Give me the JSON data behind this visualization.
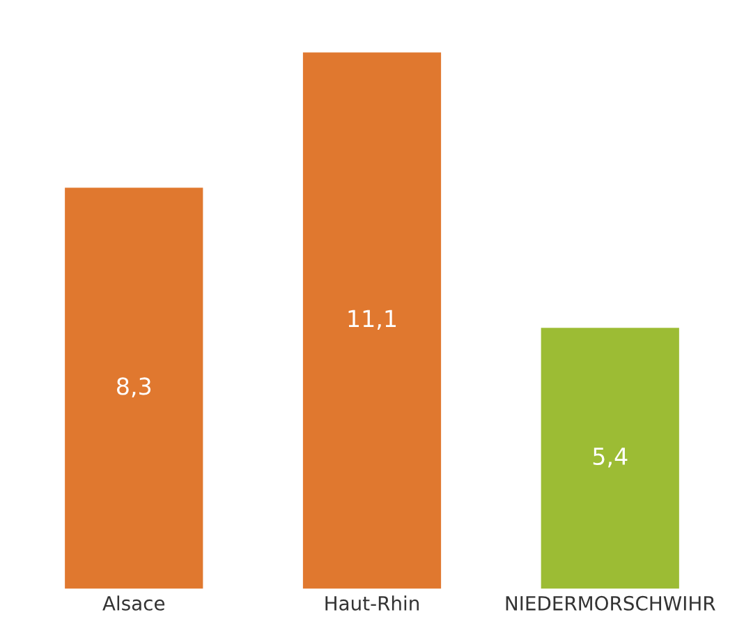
{
  "chart_data": {
    "type": "bar",
    "categories": [
      "Alsace",
      "Haut-Rhin",
      "NIEDERMORSCHWIHR"
    ],
    "values": [
      8.3,
      11.1,
      5.4
    ],
    "value_labels": [
      "8,3",
      "11,1",
      "5,4"
    ],
    "colors": [
      "#e0782f",
      "#e0782f",
      "#9cbc34"
    ],
    "grid": false,
    "legend": false
  }
}
